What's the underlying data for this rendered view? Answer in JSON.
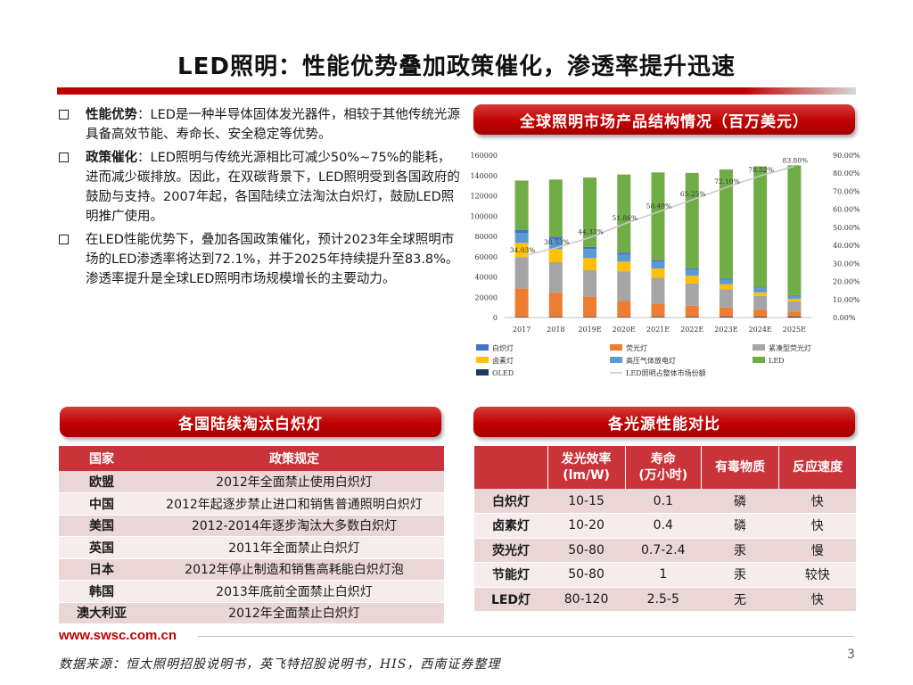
{
  "title": "LED照明：性能优势叠加政策催化，渗透率提升迅速",
  "bullets": [
    {
      "label": "性能优势",
      "text": "：LED是一种半导体固体发光器件，相较于其他传统光源具备高效节能、寿命长、安全稳定等优势。"
    },
    {
      "label": "政策催化",
      "text": "：LED照明与传统光源相比可减少50%~75%的能耗，进而减少碳排放。因此，在双碳背景下，LED照明受到各国政府的鼓励与支持。2007年起，各国陆续立法淘汰白炽灯，鼓励LED照明推广使用。"
    },
    {
      "label": "",
      "text": "在LED性能优势下，叠加各国政策催化，预计2023年全球照明市场的LED渗透率将达到72.1%，并于2025年持续提升至83.8%。渗透率提升是全球LED照明市场规模增长的主要动力。"
    }
  ],
  "chart_banner": "全球照明市场产品结构情况（百万美元）",
  "chart_data": {
    "type": "bar",
    "stacked": true,
    "title": "全球照明市场产品结构情况（百万美元）",
    "categories": [
      "2017",
      "2018",
      "2019E",
      "2020E",
      "2021E",
      "2022E",
      "2023E",
      "2024E",
      "2025E"
    ],
    "ylim": [
      0,
      160000
    ],
    "yticks": [
      "0",
      "20000",
      "40000",
      "60000",
      "80000",
      "100000",
      "120000",
      "140000",
      "160000"
    ],
    "y2lim": [
      0,
      90
    ],
    "y2ticks": [
      "0.00%",
      "10.00%",
      "20.00%",
      "30.00%",
      "40.00%",
      "50.00%",
      "60.00%",
      "70.00%",
      "80.00%",
      "90.00%"
    ],
    "series": [
      {
        "name": "OLED",
        "color": "#1f3864",
        "values": [
          500,
          500,
          600,
          600,
          700,
          700,
          800,
          800,
          900
        ]
      },
      {
        "name": "荧光灯",
        "color": "#ed7d31",
        "values": [
          28000,
          24000,
          20000,
          16000,
          13000,
          11000,
          9000,
          7000,
          5000
        ]
      },
      {
        "name": "紧凑型荧光灯",
        "color": "#a5a5a5",
        "values": [
          31000,
          30000,
          26000,
          29000,
          25500,
          22000,
          18000,
          13500,
          10000
        ]
      },
      {
        "name": "卤素灯",
        "color": "#ffc000",
        "values": [
          14000,
          13000,
          12000,
          9500,
          9000,
          7500,
          5000,
          3500,
          2500
        ]
      },
      {
        "name": "高压气体放电灯",
        "color": "#5b9bd5",
        "values": [
          10000,
          9500,
          9000,
          7000,
          6800,
          6000,
          4600,
          4000,
          3000
        ]
      },
      {
        "name": "白炽灯",
        "color": "#4472c4",
        "values": [
          3000,
          2500,
          2000,
          1900,
          1500,
          1300,
          1000,
          800,
          700
        ]
      },
      {
        "name": "LED",
        "color": "#70ad47",
        "values": [
          48500,
          56500,
          68400,
          77000,
          86500,
          94000,
          107600,
          119400,
          127900
        ]
      }
    ],
    "line": {
      "name": "LED照明占整体市场份额",
      "color": "#c9c9c9",
      "values": [
        34.03,
        38.53,
        44.33,
        51.86,
        58.49,
        65.25,
        72.1,
        78.52,
        83.8
      ],
      "labels": [
        "34.03%",
        "38.53%",
        "44.33%",
        "51.86%",
        "58.49%",
        "65.25%",
        "72.10%",
        "78.52%",
        "83.80%"
      ]
    },
    "legend": [
      {
        "name": "白炽灯",
        "color": "#4472c4"
      },
      {
        "name": "荧光灯",
        "color": "#ed7d31"
      },
      {
        "name": "紧凑型荧光灯",
        "color": "#a5a5a5"
      },
      {
        "name": "卤素灯",
        "color": "#ffc000"
      },
      {
        "name": "高压气体放电灯",
        "color": "#5b9bd5"
      },
      {
        "name": "LED",
        "color": "#70ad47"
      },
      {
        "name": "OLED",
        "color": "#1f3864"
      },
      {
        "name": "LED照明占整体市场份额",
        "color": "#c9c9c9",
        "is_line": true
      }
    ]
  },
  "ban_banner": "各国陆续淘汰白炽灯",
  "ban_table": {
    "headers": [
      "国家",
      "政策规定"
    ],
    "rows": [
      [
        "欧盟",
        "2012年全面禁止使用白炽灯"
      ],
      [
        "中国",
        "2012年起逐步禁止进口和销售普通照明白炽灯"
      ],
      [
        "美国",
        "2012-2014年逐步淘汰大多数白炽灯"
      ],
      [
        "英国",
        "2011年全面禁止白炽灯"
      ],
      [
        "日本",
        "2012年停止制造和销售高耗能白炽灯泡"
      ],
      [
        "韩国",
        "2013年底前全面禁止白炽灯"
      ],
      [
        "澳大利亚",
        "2012年全面禁止白炽灯"
      ]
    ]
  },
  "perf_banner": "各光源性能对比",
  "perf_table": {
    "headers": [
      "发光效率 (lm/W)",
      "寿命 (万小时)",
      "有毒物质",
      "反应速度"
    ],
    "header_lines": [
      [
        "发光效率",
        "(lm/W)"
      ],
      [
        "寿命",
        "(万小时)"
      ],
      [
        "有毒物质"
      ],
      [
        "反应速度"
      ]
    ],
    "rows": [
      [
        "白炽灯",
        "10-15",
        "0.1",
        "磷",
        "快"
      ],
      [
        "卤素灯",
        "10-20",
        "0.4",
        "磷",
        "快"
      ],
      [
        "荧光灯",
        "50-80",
        "0.7-2.4",
        "汞",
        "慢"
      ],
      [
        "节能灯",
        "50-80",
        "1",
        "汞",
        "较快"
      ],
      [
        "LED灯",
        "80-120",
        "2.5-5",
        "无",
        "快"
      ]
    ]
  },
  "footer": {
    "website": "www.swsc.com.cn",
    "source": "数据来源：恒太照明招股说明书，英飞特招股说明书，HIS，西南证券整理",
    "page": "3"
  }
}
